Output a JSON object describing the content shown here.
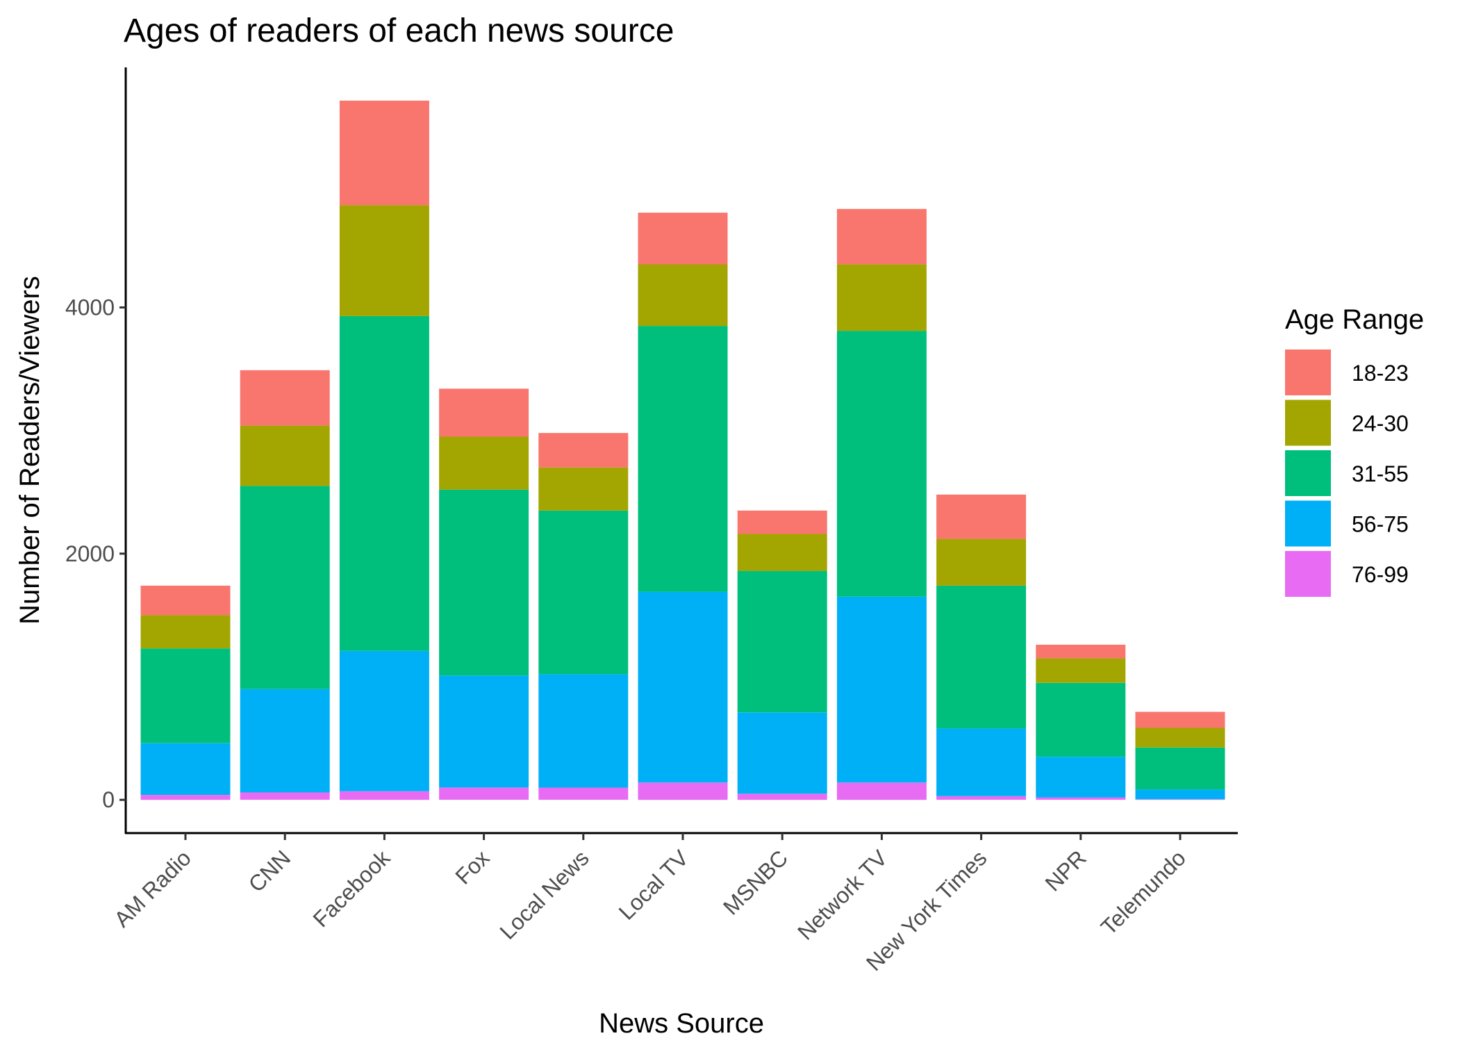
{
  "chart_data": {
    "type": "bar",
    "stacked": true,
    "title": "Ages of readers of each news source",
    "xlabel": "News Source",
    "ylabel": "Number of Readers/Viewers",
    "categories": [
      "AM Radio",
      "CNN",
      "Facebook",
      "Fox",
      "Local News",
      "Local TV",
      "MSNBC",
      "Network TV",
      "New York Times",
      "NPR",
      "Telemundo"
    ],
    "y_ticks": [
      0,
      2000,
      4000
    ],
    "y_tick_labels": [
      "0",
      "2000",
      "4000"
    ],
    "ylim": [
      -270,
      5950
    ],
    "grid": false,
    "legend": {
      "title": "Age Range",
      "position": "right"
    },
    "series": [
      {
        "name": "18-23",
        "color": "#F8766D",
        "values": [
          240,
          450,
          850,
          390,
          280,
          420,
          190,
          450,
          360,
          110,
          130
        ]
      },
      {
        "name": "24-30",
        "color": "#A3A500",
        "values": [
          270,
          490,
          900,
          430,
          350,
          500,
          300,
          540,
          380,
          200,
          160
        ]
      },
      {
        "name": "31-55",
        "color": "#00BF7D",
        "values": [
          770,
          1650,
          2720,
          1510,
          1330,
          2160,
          1150,
          2160,
          1160,
          600,
          340
        ]
      },
      {
        "name": "56-75",
        "color": "#00B0F6",
        "values": [
          420,
          840,
          1140,
          910,
          920,
          1550,
          660,
          1510,
          550,
          330,
          80
        ]
      },
      {
        "name": "76-99",
        "color": "#E76BF3",
        "values": [
          40,
          60,
          70,
          100,
          100,
          140,
          50,
          140,
          30,
          20,
          5
        ]
      }
    ]
  }
}
